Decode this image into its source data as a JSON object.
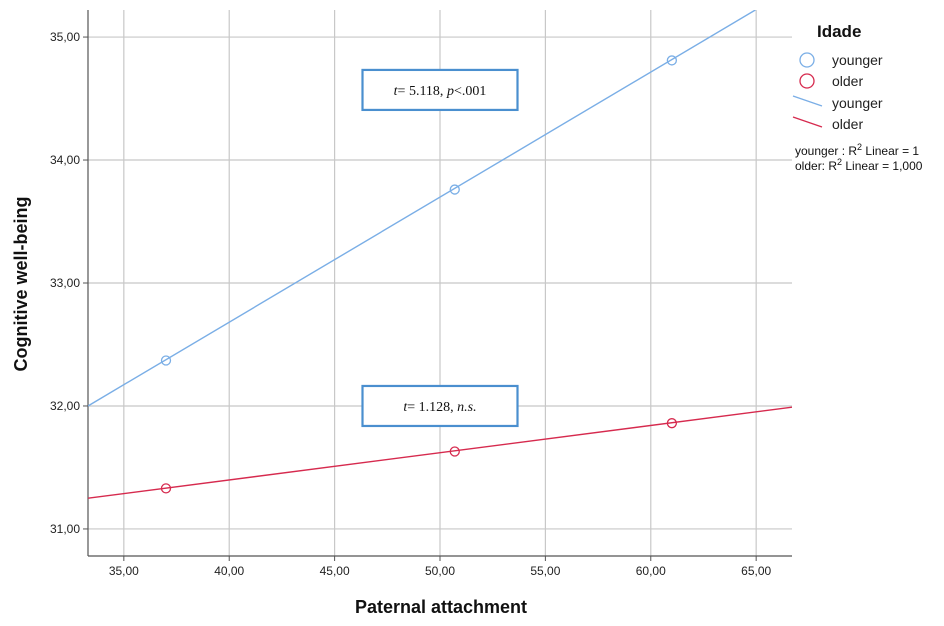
{
  "chart_data": {
    "type": "scatter",
    "xlabel": "Paternal attachment",
    "ylabel": "Cognitive well-being",
    "xlim": [
      33.3,
      66.7
    ],
    "ylim": [
      30.78,
      35.22
    ],
    "x_ticks": [
      "35,00",
      "40,00",
      "45,00",
      "50,00",
      "55,00",
      "60,00",
      "65,00"
    ],
    "x_tick_values": [
      35,
      40,
      45,
      50,
      55,
      60,
      65
    ],
    "y_ticks": [
      "31,00",
      "32,00",
      "33,00",
      "34,00",
      "35,00"
    ],
    "y_tick_values": [
      31,
      32,
      33,
      34,
      35
    ],
    "grid": true,
    "legend_position": "right",
    "series": [
      {
        "name": "younger",
        "color": "#7aaee6",
        "points": [
          {
            "x": 37.0,
            "y": 32.37
          },
          {
            "x": 50.7,
            "y": 33.76
          },
          {
            "x": 61.0,
            "y": 34.81
          }
        ],
        "fit_line": {
          "x": [
            33.3,
            64.96
          ],
          "y": [
            32.0,
            35.22
          ]
        }
      },
      {
        "name": "older",
        "color": "#d62a4e",
        "points": [
          {
            "x": 37.0,
            "y": 31.33
          },
          {
            "x": 50.7,
            "y": 31.63
          },
          {
            "x": 61.0,
            "y": 31.86
          }
        ],
        "fit_line": {
          "x": [
            33.3,
            66.7
          ],
          "y": [
            31.25,
            31.99
          ]
        }
      }
    ],
    "annotations": [
      {
        "anchor_x": 50.0,
        "anchor_y": 34.57,
        "stat": "t",
        "rest": "= 5.118, ",
        "p_label": "p",
        "p_rest": "<.001"
      },
      {
        "anchor_x": 50.0,
        "anchor_y": 32.0,
        "stat": "t",
        "rest": "= 1.128, ",
        "p_label": "n.s.",
        "p_rest": ""
      }
    ]
  },
  "legend": {
    "title": "Idade",
    "marker_items": [
      {
        "label": "younger",
        "color": "#7aaee6"
      },
      {
        "label": "older",
        "color": "#d62a4e"
      }
    ],
    "line_items": [
      {
        "label": "younger",
        "color": "#7aaee6"
      },
      {
        "label": "older",
        "color": "#d62a4e"
      }
    ],
    "rsq": [
      {
        "prefix": "younger  : R",
        "sup": "2",
        "suffix": " Linear = 1"
      },
      {
        "prefix": "older: R",
        "sup": "2",
        "suffix": " Linear = 1,000"
      }
    ]
  },
  "colors": {
    "grid": "#c8c8c8",
    "axis": "#555555",
    "annotation_border": "#4a8fcf"
  }
}
